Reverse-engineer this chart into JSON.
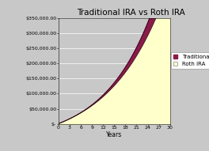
{
  "title": "Traditional IRA vs Roth IRA",
  "xlabel": "Years",
  "xticks": [
    0,
    3,
    6,
    9,
    12,
    15,
    18,
    21,
    24,
    27,
    30
  ],
  "yticks": [
    0,
    50000,
    100000,
    150000,
    200000,
    250000,
    300000,
    350000
  ],
  "ylim": [
    0,
    350000
  ],
  "xlim": [
    0,
    30
  ],
  "traditional_rate": 0.08,
  "roth_rate": 0.07,
  "traditional_color": "#8B1A4A",
  "roth_color": "#FFFFCC",
  "fig_bg_color": "#C8C8C8",
  "plot_bg": "#C8C8C8",
  "grid_color": "#A0A0A0",
  "legend_traditional_color": "#8B1A4A",
  "legend_roth_color": "#FFFFCC",
  "legend_fontsize": 5.0,
  "title_fontsize": 7.5,
  "tick_fontsize": 4.5,
  "label_fontsize": 5.5
}
